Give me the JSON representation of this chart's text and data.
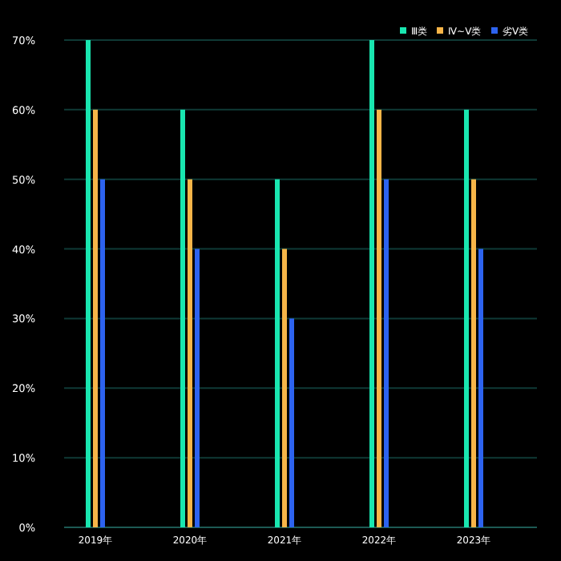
{
  "chart_data": {
    "type": "bar",
    "categories": [
      "2019年",
      "2020年",
      "2021年",
      "2022年",
      "2023年"
    ],
    "series": [
      {
        "name": "Ⅲ类",
        "color": "#19e6b0",
        "values": [
          70,
          60,
          50,
          70,
          60
        ]
      },
      {
        "name": "Ⅳ~Ⅴ类",
        "color": "#f7b548",
        "values": [
          60,
          50,
          40,
          60,
          50
        ]
      },
      {
        "name": "劣Ⅴ类",
        "color": "#2d63ef",
        "values": [
          50,
          40,
          30,
          50,
          40
        ]
      }
    ],
    "ylim": [
      0,
      70
    ],
    "yticks": [
      {
        "value": 0,
        "label": "0%"
      },
      {
        "value": 10,
        "label": "10%"
      },
      {
        "value": 20,
        "label": "20%"
      },
      {
        "value": 30,
        "label": "30%"
      },
      {
        "value": 40,
        "label": "40%"
      },
      {
        "value": 50,
        "label": "50%"
      },
      {
        "value": 60,
        "label": "60%"
      },
      {
        "value": 70,
        "label": "70%"
      }
    ],
    "grid": "y",
    "legend": "top right"
  }
}
